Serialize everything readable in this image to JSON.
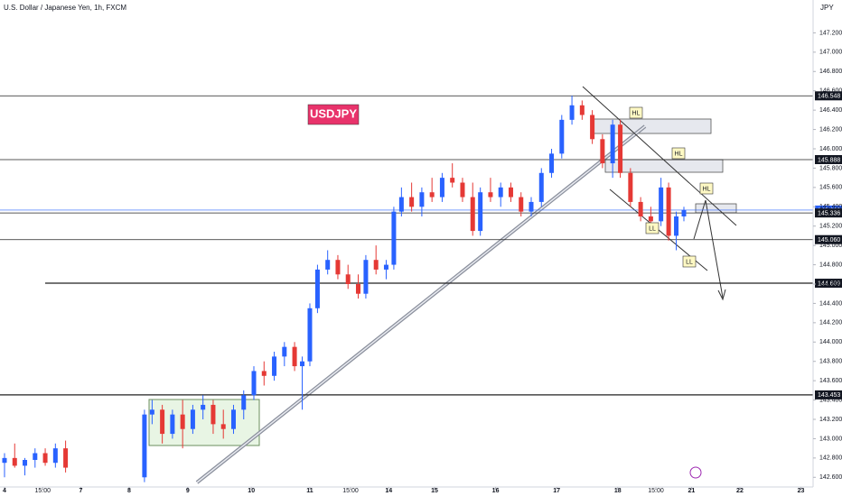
{
  "chart_data": {
    "type": "candlestick",
    "title": "U.S. Dollar / Japanese Yen, 1h, FXCM",
    "currency": "JPY",
    "annotations": [
      "USDJPY",
      "HL",
      "HL",
      "HL",
      "LL",
      "LL"
    ],
    "up_color": "#2962ff",
    "down_color": "#e53935",
    "xlim": [
      0,
      316
    ],
    "ylim": [
      142.5,
      147.4
    ],
    "xticks": [
      {
        "value": 0,
        "label": "4"
      },
      {
        "value": 15,
        "label": "15:00"
      },
      {
        "value": 30,
        "label": "7"
      },
      {
        "value": 49,
        "label": "8"
      },
      {
        "value": 72,
        "label": "9"
      },
      {
        "value": 97,
        "label": "10"
      },
      {
        "value": 120,
        "label": "11"
      },
      {
        "value": 136,
        "label": "15:00"
      },
      {
        "value": 151,
        "label": "14"
      },
      {
        "value": 169,
        "label": "15"
      },
      {
        "value": 193,
        "label": "16"
      },
      {
        "value": 217,
        "label": "17"
      },
      {
        "value": 241,
        "label": "18"
      },
      {
        "value": 256,
        "label": "15:00"
      },
      {
        "value": 270,
        "label": "21"
      },
      {
        "value": 289,
        "label": "22"
      },
      {
        "value": 313,
        "label": "23"
      }
    ],
    "yticks": [
      {
        "value": 147.2,
        "label": "147.200"
      },
      {
        "value": 147.0,
        "label": "147.000"
      },
      {
        "value": 146.8,
        "label": "146.800"
      },
      {
        "value": 146.6,
        "label": "146.600"
      },
      {
        "value": 146.4,
        "label": "146.400"
      },
      {
        "value": 146.2,
        "label": "146.200"
      },
      {
        "value": 146.0,
        "label": "146.000"
      },
      {
        "value": 145.8,
        "label": "145.800"
      },
      {
        "value": 145.6,
        "label": "145.600"
      },
      {
        "value": 145.4,
        "label": "145.400"
      },
      {
        "value": 145.2,
        "label": "145.200"
      },
      {
        "value": 145.0,
        "label": "145.000"
      },
      {
        "value": 144.8,
        "label": "144.800"
      },
      {
        "value": 144.6,
        "label": "144.600"
      },
      {
        "value": 144.4,
        "label": "144.400"
      },
      {
        "value": 144.2,
        "label": "144.200"
      },
      {
        "value": 144.0,
        "label": "144.000"
      },
      {
        "value": 143.8,
        "label": "143.800"
      },
      {
        "value": 143.6,
        "label": "143.600"
      },
      {
        "value": 143.4,
        "label": "143.400"
      },
      {
        "value": 143.2,
        "label": "143.200"
      },
      {
        "value": 143.0,
        "label": "143.000"
      },
      {
        "value": 142.8,
        "label": "142.800"
      },
      {
        "value": 142.6,
        "label": "142.600"
      }
    ],
    "levels": [
      146.548,
      145.888,
      145.366,
      145.336,
      {
        "value": 145.06,
        "label": "145.060"
      },
      144.609,
      143.453
    ],
    "candles": [
      {
        "x": 0,
        "open": 142.75,
        "high": 142.85,
        "low": 142.6,
        "close": 142.8
      },
      {
        "x": 4,
        "open": 142.8,
        "high": 142.95,
        "low": 142.7,
        "close": 142.72
      },
      {
        "x": 8,
        "open": 142.72,
        "high": 142.8,
        "low": 142.62,
        "close": 142.78
      },
      {
        "x": 12,
        "open": 142.78,
        "high": 142.9,
        "low": 142.7,
        "close": 142.85
      },
      {
        "x": 16,
        "open": 142.85,
        "high": 142.9,
        "low": 142.72,
        "close": 142.75
      },
      {
        "x": 20,
        "open": 142.75,
        "high": 142.95,
        "low": 142.7,
        "close": 142.9
      },
      {
        "x": 24,
        "open": 142.9,
        "high": 142.98,
        "low": 142.65,
        "close": 142.7
      },
      {
        "x": 55,
        "open": 142.6,
        "high": 143.3,
        "low": 142.55,
        "close": 143.25
      },
      {
        "x": 58,
        "open": 143.25,
        "high": 143.4,
        "low": 143.15,
        "close": 143.3
      },
      {
        "x": 62,
        "open": 143.3,
        "high": 143.35,
        "low": 142.95,
        "close": 143.05
      },
      {
        "x": 66,
        "open": 143.05,
        "high": 143.3,
        "low": 143.0,
        "close": 143.25
      },
      {
        "x": 70,
        "open": 143.25,
        "high": 143.4,
        "low": 142.9,
        "close": 143.1
      },
      {
        "x": 74,
        "open": 143.1,
        "high": 143.35,
        "low": 143.05,
        "close": 143.3
      },
      {
        "x": 78,
        "open": 143.3,
        "high": 143.45,
        "low": 143.2,
        "close": 143.35
      },
      {
        "x": 82,
        "open": 143.35,
        "high": 143.4,
        "low": 143.05,
        "close": 143.15
      },
      {
        "x": 86,
        "open": 143.15,
        "high": 143.3,
        "low": 143.0,
        "close": 143.1
      },
      {
        "x": 90,
        "open": 143.1,
        "high": 143.35,
        "low": 143.05,
        "close": 143.3
      },
      {
        "x": 94,
        "open": 143.3,
        "high": 143.5,
        "low": 143.2,
        "close": 143.45
      },
      {
        "x": 98,
        "open": 143.45,
        "high": 143.75,
        "low": 143.4,
        "close": 143.7
      },
      {
        "x": 102,
        "open": 143.7,
        "high": 143.8,
        "low": 143.55,
        "close": 143.65
      },
      {
        "x": 106,
        "open": 143.65,
        "high": 143.9,
        "low": 143.6,
        "close": 143.85
      },
      {
        "x": 110,
        "open": 143.85,
        "high": 144.0,
        "low": 143.75,
        "close": 143.95
      },
      {
        "x": 114,
        "open": 143.95,
        "high": 144.0,
        "low": 143.7,
        "close": 143.75
      },
      {
        "x": 117,
        "open": 143.75,
        "high": 143.85,
        "low": 143.3,
        "close": 143.8
      },
      {
        "x": 120,
        "open": 143.8,
        "high": 144.4,
        "low": 143.75,
        "close": 144.35
      },
      {
        "x": 123,
        "open": 144.35,
        "high": 144.8,
        "low": 144.3,
        "close": 144.75
      },
      {
        "x": 127,
        "open": 144.75,
        "high": 144.95,
        "low": 144.7,
        "close": 144.85
      },
      {
        "x": 131,
        "open": 144.85,
        "high": 144.9,
        "low": 144.65,
        "close": 144.7
      },
      {
        "x": 135,
        "open": 144.7,
        "high": 144.8,
        "low": 144.55,
        "close": 144.6
      },
      {
        "x": 139,
        "open": 144.6,
        "high": 144.7,
        "low": 144.45,
        "close": 144.5
      },
      {
        "x": 142,
        "open": 144.5,
        "high": 144.9,
        "low": 144.45,
        "close": 144.85
      },
      {
        "x": 146,
        "open": 144.85,
        "high": 145.0,
        "low": 144.7,
        "close": 144.75
      },
      {
        "x": 150,
        "open": 144.75,
        "high": 144.85,
        "low": 144.65,
        "close": 144.8
      },
      {
        "x": 153,
        "open": 144.8,
        "high": 145.4,
        "low": 144.75,
        "close": 145.35
      },
      {
        "x": 156,
        "open": 145.35,
        "high": 145.6,
        "low": 145.3,
        "close": 145.5
      },
      {
        "x": 160,
        "open": 145.5,
        "high": 145.65,
        "low": 145.35,
        "close": 145.4
      },
      {
        "x": 164,
        "open": 145.4,
        "high": 145.6,
        "low": 145.3,
        "close": 145.55
      },
      {
        "x": 168,
        "open": 145.55,
        "high": 145.7,
        "low": 145.45,
        "close": 145.5
      },
      {
        "x": 172,
        "open": 145.5,
        "high": 145.75,
        "low": 145.45,
        "close": 145.7
      },
      {
        "x": 176,
        "open": 145.7,
        "high": 145.85,
        "low": 145.6,
        "close": 145.65
      },
      {
        "x": 180,
        "open": 145.65,
        "high": 145.7,
        "low": 145.45,
        "close": 145.5
      },
      {
        "x": 184,
        "open": 145.5,
        "high": 145.65,
        "low": 145.1,
        "close": 145.15
      },
      {
        "x": 187,
        "open": 145.15,
        "high": 145.6,
        "low": 145.1,
        "close": 145.55
      },
      {
        "x": 191,
        "open": 145.55,
        "high": 145.7,
        "low": 145.45,
        "close": 145.5
      },
      {
        "x": 195,
        "open": 145.5,
        "high": 145.65,
        "low": 145.4,
        "close": 145.6
      },
      {
        "x": 199,
        "open": 145.6,
        "high": 145.65,
        "low": 145.45,
        "close": 145.5
      },
      {
        "x": 203,
        "open": 145.5,
        "high": 145.55,
        "low": 145.3,
        "close": 145.35
      },
      {
        "x": 207,
        "open": 145.35,
        "high": 145.5,
        "low": 145.3,
        "close": 145.45
      },
      {
        "x": 211,
        "open": 145.45,
        "high": 145.8,
        "low": 145.4,
        "close": 145.75
      },
      {
        "x": 215,
        "open": 145.75,
        "high": 146.0,
        "low": 145.7,
        "close": 145.95
      },
      {
        "x": 219,
        "open": 145.95,
        "high": 146.35,
        "low": 145.9,
        "close": 146.3
      },
      {
        "x": 223,
        "open": 146.3,
        "high": 146.55,
        "low": 146.25,
        "close": 146.45
      },
      {
        "x": 227,
        "open": 146.45,
        "high": 146.5,
        "low": 146.3,
        "close": 146.35
      },
      {
        "x": 231,
        "open": 146.35,
        "high": 146.4,
        "low": 146.05,
        "close": 146.1
      },
      {
        "x": 235,
        "open": 146.1,
        "high": 146.15,
        "low": 145.8,
        "close": 145.85
      },
      {
        "x": 239,
        "open": 145.85,
        "high": 146.3,
        "low": 145.7,
        "close": 146.25
      },
      {
        "x": 242,
        "open": 146.25,
        "high": 146.3,
        "low": 145.7,
        "close": 145.75
      },
      {
        "x": 246,
        "open": 145.75,
        "high": 145.8,
        "low": 145.4,
        "close": 145.45
      },
      {
        "x": 250,
        "open": 145.45,
        "high": 145.5,
        "low": 145.25,
        "close": 145.3
      },
      {
        "x": 254,
        "open": 145.3,
        "high": 145.4,
        "low": 145.15,
        "close": 145.25
      },
      {
        "x": 258,
        "open": 145.25,
        "high": 145.7,
        "low": 145.2,
        "close": 145.6
      },
      {
        "x": 261,
        "open": 145.6,
        "high": 145.65,
        "low": 145.05,
        "close": 145.1
      },
      {
        "x": 264,
        "open": 145.1,
        "high": 145.35,
        "low": 144.95,
        "close": 145.3
      },
      {
        "x": 267,
        "open": 145.3,
        "high": 145.4,
        "low": 145.25,
        "close": 145.366
      }
    ]
  }
}
